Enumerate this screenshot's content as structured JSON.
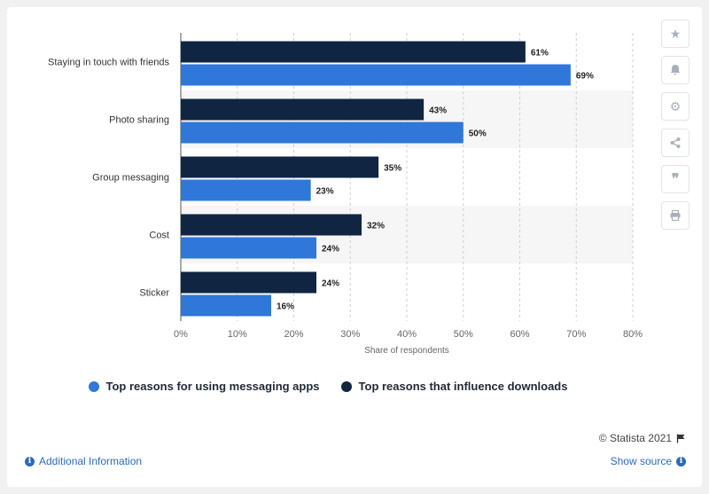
{
  "chart_data": {
    "type": "bar",
    "orientation": "horizontal",
    "categories": [
      "Staying in touch with friends",
      "Photo sharing",
      "Group messaging",
      "Cost",
      "Sticker"
    ],
    "series": [
      {
        "name": "Top reasons that influence downloads",
        "values": [
          61,
          43,
          35,
          32,
          24
        ],
        "color": "#0f2542"
      },
      {
        "name": "Top reasons for using messaging apps",
        "values": [
          69,
          50,
          23,
          24,
          16
        ],
        "color": "#2f77d9"
      }
    ],
    "xlabel": "Share of respondents",
    "ylabel": "",
    "xlim": [
      0,
      80
    ],
    "xticks": [
      "0%",
      "10%",
      "20%",
      "30%",
      "40%",
      "50%",
      "60%",
      "70%",
      "80%"
    ],
    "value_suffix": "%",
    "grid": true
  },
  "legend": {
    "items": [
      {
        "label": "Top reasons for using messaging apps",
        "color": "#2f77d9"
      },
      {
        "label": "Top reasons that influence downloads",
        "color": "#0f2542"
      }
    ]
  },
  "footer": {
    "credit": "© Statista 2021",
    "additional_info": "Additional Information",
    "show_source": "Show source"
  },
  "toolbar": {
    "icons": [
      "star-icon",
      "bell-icon",
      "gear-icon",
      "share-icon",
      "quote-icon",
      "print-icon"
    ]
  }
}
